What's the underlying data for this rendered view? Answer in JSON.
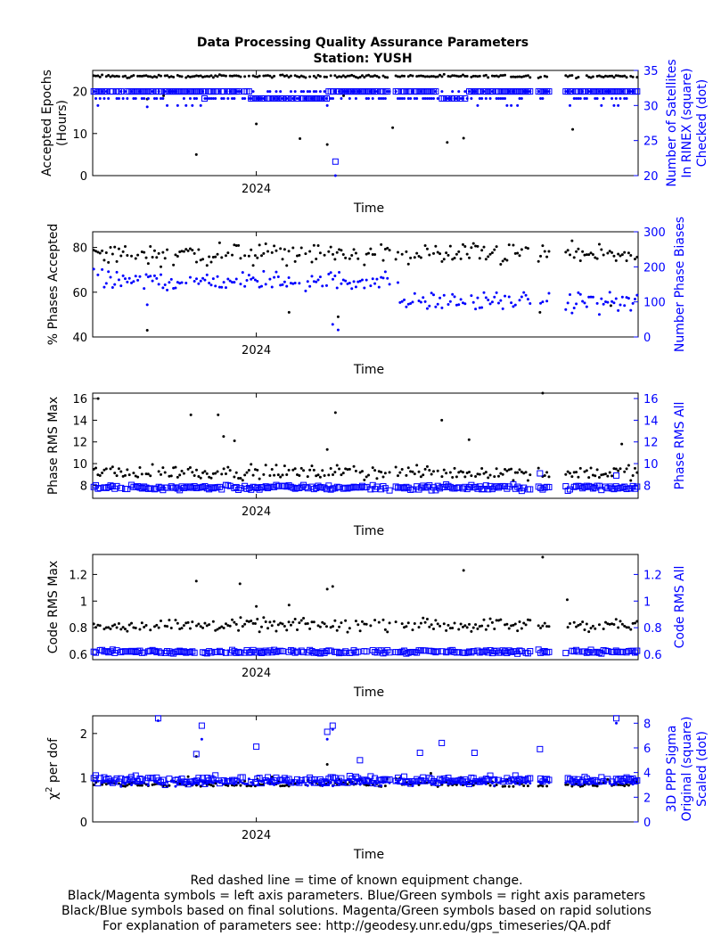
{
  "title": [
    "Data Processing Quality Assurance Parameters",
    "Station: YUSH"
  ],
  "footer": [
    "Red dashed line = time of known equipment change.",
    "Black/Magenta symbols = left axis parameters. Blue/Green symbols = right axis parameters",
    "Black/Blue symbols based on final solutions.  Magenta/Green symbols based on rapid solutions",
    "For explanation of parameters see: http://geodesy.unr.edu/gps_timeseries/QA.pdf"
  ],
  "colors": {
    "left": "#000000",
    "right": "#0000ff"
  },
  "chart_data": [
    {
      "type": "scatter",
      "xlabel": "Time",
      "x_tick_labels": [
        "2024"
      ],
      "ylabel": [
        "Accepted Epochs",
        "(Hours)"
      ],
      "ylabel_right": [
        "Number of Satellites",
        "In RINEX (square)",
        "Checked (dot)"
      ],
      "ylim": [
        0,
        25
      ],
      "yticks": [
        0,
        10,
        20
      ],
      "ylim_right": [
        20,
        35
      ],
      "yticks_right": [
        20,
        25,
        30,
        35
      ],
      "series": [
        {
          "name": "Accepted Epochs",
          "axis": "left",
          "marker": "dot",
          "typical": 23.6,
          "spread": 0.5,
          "outliers": [
            [
              0.1,
              18.2
            ],
            [
              0.13,
              19.0
            ],
            [
              0.19,
              5.0
            ],
            [
              0.3,
              12.3
            ],
            [
              0.38,
              8.8
            ],
            [
              0.43,
              7.4
            ],
            [
              0.46,
              19.0
            ],
            [
              0.55,
              11.4
            ],
            [
              0.65,
              7.9
            ],
            [
              0.68,
              8.9
            ],
            [
              0.88,
              11.0
            ]
          ]
        },
        {
          "name": "In RINEX",
          "axis": "right",
          "marker": "square",
          "typical": 32.0,
          "spread": 0.1,
          "outliers": [
            [
              0.41,
              31.0
            ],
            [
              0.445,
              22.0
            ],
            [
              0.205,
              31.0
            ]
          ]
        },
        {
          "name": "Checked",
          "axis": "right",
          "marker": "dot",
          "typical": 31.0,
          "spread": 1.0,
          "outliers": [
            [
              0.445,
              20.0
            ],
            [
              0.43,
              30.0
            ],
            [
              0.1,
              29.8
            ]
          ]
        }
      ]
    },
    {
      "type": "scatter",
      "xlabel": "Time",
      "x_tick_labels": [
        "2024"
      ],
      "ylabel": [
        "% Phases Accepted"
      ],
      "ylabel_right": [
        "Number Phase Biases"
      ],
      "ylim": [
        40,
        87
      ],
      "yticks": [
        40,
        60,
        80
      ],
      "ylim_right": [
        0,
        300
      ],
      "yticks_right": [
        0,
        100,
        200,
        300
      ],
      "series": [
        {
          "name": "% Phases Accepted",
          "axis": "left",
          "marker": "dot",
          "typical": 77,
          "spread": 7,
          "outliers": [
            [
              0.1,
              43
            ],
            [
              0.36,
              51
            ],
            [
              0.45,
              49
            ],
            [
              0.82,
              51
            ],
            [
              0.95,
              54
            ]
          ]
        },
        {
          "name": "Number Phase Biases",
          "axis": "right",
          "marker": "dot",
          "typical_early": 160,
          "typical_late": 100,
          "spread": 40,
          "outliers": [
            [
              0.1,
              92
            ],
            [
              0.44,
              36
            ],
            [
              0.45,
              20
            ]
          ]
        }
      ]
    },
    {
      "type": "scatter",
      "xlabel": "Time",
      "x_tick_labels": [
        "2024"
      ],
      "ylabel": [
        "Phase RMS Max"
      ],
      "ylabel_right": [
        "Phase RMS All"
      ],
      "ylim": [
        6.8,
        16.5
      ],
      "yticks": [
        8,
        10,
        12,
        14,
        16
      ],
      "ylim_right": [
        6.8,
        16.5
      ],
      "yticks_right": [
        8,
        10,
        12,
        14,
        16
      ],
      "series": [
        {
          "name": "Phase RMS Max",
          "axis": "left",
          "marker": "dot",
          "typical": 9.2,
          "spread": 0.9,
          "outliers": [
            [
              0.01,
              16.0
            ],
            [
              0.18,
              14.5
            ],
            [
              0.23,
              14.5
            ],
            [
              0.24,
              12.5
            ],
            [
              0.26,
              12.1
            ],
            [
              0.43,
              11.3
            ],
            [
              0.445,
              14.7
            ],
            [
              0.64,
              14.0
            ],
            [
              0.69,
              12.2
            ],
            [
              0.825,
              16.5
            ],
            [
              0.97,
              11.8
            ]
          ]
        },
        {
          "name": "Phase RMS All",
          "axis": "right",
          "marker": "square",
          "typical": 7.8,
          "spread": 0.35,
          "outliers": [
            [
              0.82,
              9.1
            ],
            [
              0.96,
              8.9
            ]
          ]
        }
      ]
    },
    {
      "type": "scatter",
      "xlabel": "Time",
      "x_tick_labels": [
        "2024"
      ],
      "ylabel": [
        "Code RMS Max"
      ],
      "ylabel_right": [
        "Code RMS All"
      ],
      "ylim": [
        0.56,
        1.35
      ],
      "yticks": [
        0.6,
        0.8,
        1.0,
        1.2
      ],
      "ytick_labels": [
        "0.6",
        "0.8",
        "1",
        "1.2"
      ],
      "ylim_right": [
        0.56,
        1.35
      ],
      "yticks_right": [
        0.6,
        0.8,
        1.0,
        1.2
      ],
      "ytick_labels_right": [
        "0.6",
        "0.8",
        "1",
        "1.2"
      ],
      "series": [
        {
          "name": "Code RMS Max",
          "axis": "left",
          "marker": "dot",
          "typical": 0.82,
          "spread": 0.07,
          "outliers": [
            [
              0.19,
              1.15
            ],
            [
              0.27,
              1.13
            ],
            [
              0.43,
              1.09
            ],
            [
              0.44,
              1.11
            ],
            [
              0.68,
              1.23
            ],
            [
              0.825,
              1.33
            ],
            [
              0.87,
              1.01
            ],
            [
              0.3,
              0.96
            ],
            [
              0.36,
              0.97
            ]
          ]
        },
        {
          "name": "Code RMS All",
          "axis": "right",
          "marker": "square",
          "typical": 0.62,
          "spread": 0.02,
          "outliers": []
        }
      ]
    },
    {
      "type": "scatter",
      "xlabel": "Time",
      "x_tick_labels": [
        "2024"
      ],
      "ylabel": [
        "χ² per dof"
      ],
      "ylabel_right": [
        "3D PPP Sigma",
        "Original (square)",
        "Scaled (dot)"
      ],
      "ylim": [
        0,
        2.4
      ],
      "yticks": [
        0,
        1,
        2
      ],
      "ylim_right": [
        0,
        8.6
      ],
      "yticks_right": [
        0,
        2,
        4,
        6,
        8
      ],
      "series": [
        {
          "name": "χ² per dof",
          "axis": "left",
          "marker": "dot",
          "typical": 0.88,
          "spread": 0.1,
          "outliers": [
            [
              0.19,
              1.48
            ],
            [
              0.43,
              1.3
            ],
            [
              0.62,
              1.1
            ]
          ]
        },
        {
          "name": "3D PPP Sigma Original",
          "axis": "right",
          "marker": "square",
          "typical": 3.4,
          "spread": 0.45,
          "outliers": [
            [
              0.12,
              8.4
            ],
            [
              0.19,
              5.5
            ],
            [
              0.2,
              7.8
            ],
            [
              0.3,
              6.1
            ],
            [
              0.43,
              7.3
            ],
            [
              0.44,
              7.8
            ],
            [
              0.49,
              5.0
            ],
            [
              0.6,
              5.6
            ],
            [
              0.64,
              6.4
            ],
            [
              0.7,
              5.6
            ],
            [
              0.82,
              5.9
            ],
            [
              0.96,
              8.4
            ]
          ]
        },
        {
          "name": "3D PPP Sigma Scaled",
          "axis": "right",
          "marker": "dot",
          "typical": 3.2,
          "spread": 0.4,
          "outliers": [
            [
              0.12,
              8.2
            ],
            [
              0.2,
              6.7
            ],
            [
              0.43,
              6.7
            ],
            [
              0.44,
              7.5
            ],
            [
              0.96,
              8.0
            ]
          ]
        }
      ]
    }
  ]
}
